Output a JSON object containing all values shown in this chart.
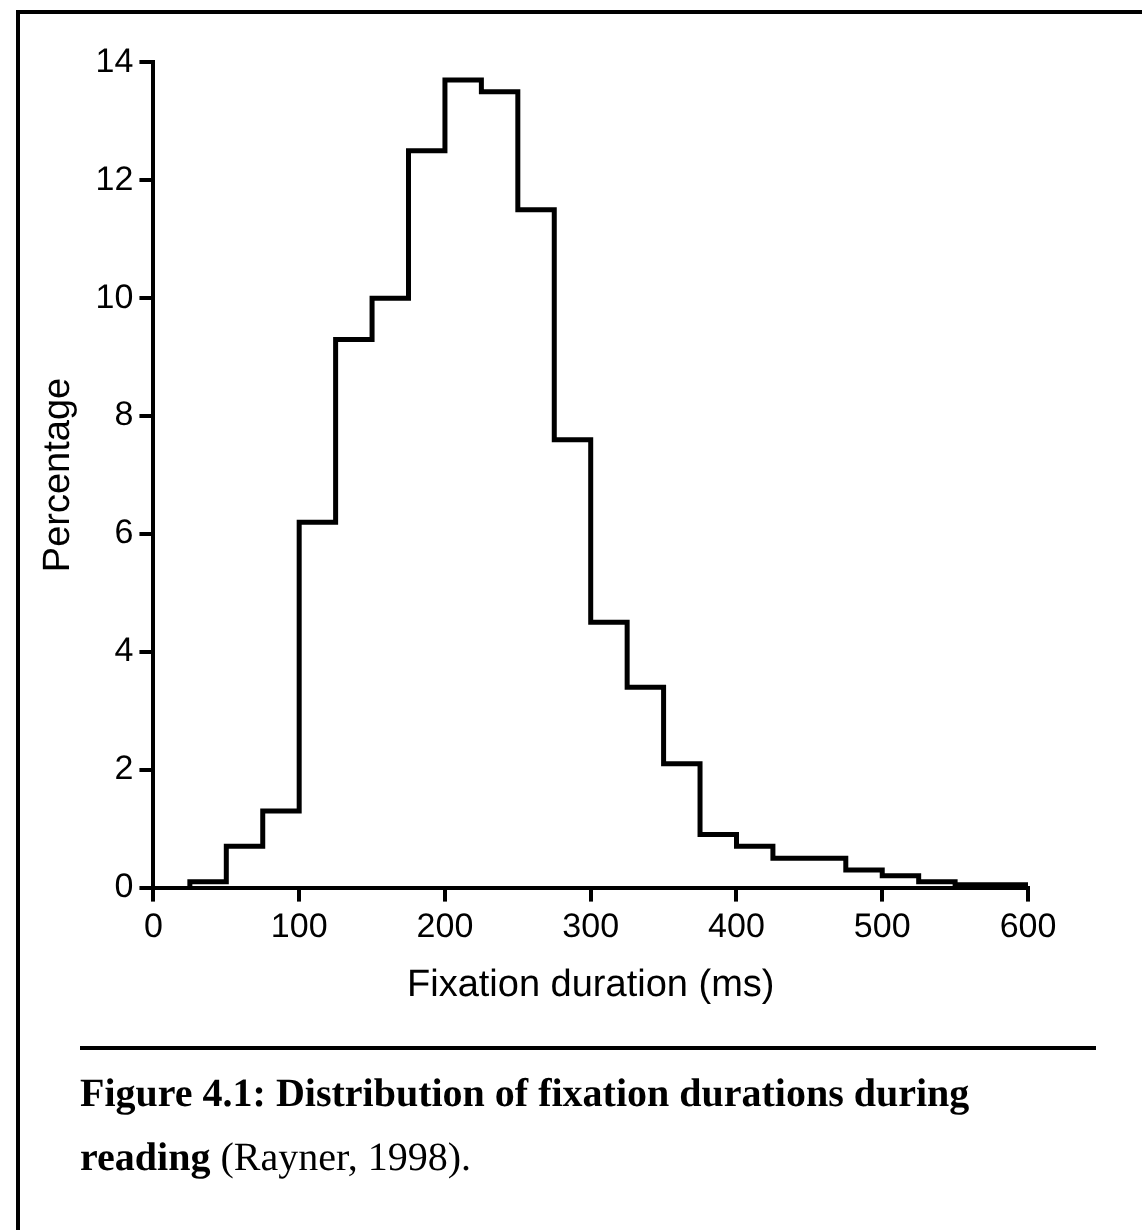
{
  "chart_data": {
    "type": "histogram",
    "title": "Figure 4.1: Distribution of fixation durations during reading",
    "annotations": [
      "(Rayner, 1998)."
    ],
    "xlabel": "Fixation duration (ms)",
    "ylabel": "Percentage",
    "bins": [
      25,
      50,
      75,
      100,
      125,
      150,
      175,
      200,
      225,
      250,
      275,
      300,
      325,
      350,
      375,
      400,
      425,
      450,
      475,
      500,
      525,
      550,
      575,
      600
    ],
    "values": [
      0.1,
      0.7,
      1.3,
      6.2,
      9.3,
      10.0,
      12.5,
      13.7,
      13.5,
      11.5,
      7.6,
      4.5,
      3.4,
      2.1,
      0.9,
      0.7,
      0.5,
      0.5,
      0.3,
      0.2,
      0.1,
      0.05,
      0.05
    ],
    "color": "#000000",
    "xlim": [
      0,
      600
    ],
    "xticks": [
      0,
      100,
      200,
      300,
      400,
      500,
      600
    ],
    "ylim": [
      0,
      14
    ],
    "yticks": [
      0,
      2,
      4,
      6,
      8,
      10,
      12,
      14
    ],
    "grid": false,
    "legend": false
  }
}
